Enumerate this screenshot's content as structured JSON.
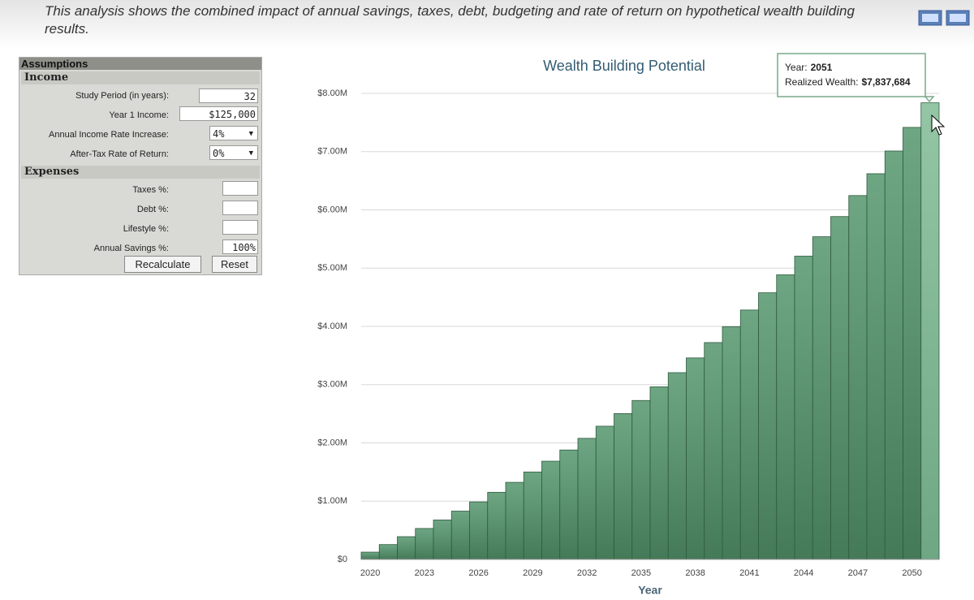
{
  "header": {
    "description": "This analysis shows the combined impact of annual savings, taxes, debt, budgeting and rate of return on hypothetical wealth building results."
  },
  "form": {
    "title": "Assumptions",
    "sections": [
      {
        "title": "Income",
        "fields": [
          {
            "label": "Study Period (in years):",
            "value": "32"
          },
          {
            "label": "Year 1 Income:",
            "value": "$125,000"
          },
          {
            "label": "Annual Income Rate Increase:",
            "value": "4%"
          },
          {
            "label": "After-Tax Rate of Return:",
            "value": "0%"
          }
        ]
      },
      {
        "title": "Expenses",
        "fields": [
          {
            "label": "Taxes %:"
          },
          {
            "label": "Debt %:"
          },
          {
            "label": "Lifestyle %:"
          },
          {
            "label": "Annual Savings %:",
            "value": "100%"
          }
        ]
      }
    ],
    "buttons": [
      "Recalculate",
      "Reset"
    ]
  },
  "chart_data": {
    "type": "bar",
    "title": "Wealth Building Potential",
    "x_label": "Year",
    "x": [
      2020,
      2021,
      2022,
      2023,
      2024,
      2025,
      2026,
      2027,
      2028,
      2029,
      2030,
      2031,
      2032,
      2033,
      2034,
      2035,
      2036,
      2037,
      2038,
      2039,
      2040,
      2041,
      2042,
      2043,
      2044,
      2045,
      2046,
      2047,
      2048,
      2049,
      2050,
      2051
    ],
    "values": [
      125000,
      255000,
      390200,
      530800,
      677000,
      829100,
      987300,
      1151800,
      1322900,
      1500800,
      1685800,
      1878200,
      2078400,
      2286500,
      2503000,
      2728100,
      2962200,
      3205700,
      3458900,
      3722300,
      3996100,
      4281000,
      4577200,
      4885300,
      5205700,
      5539000,
      5885500,
      6246000,
      6620800,
      7010600,
      7416000,
      7837684
    ],
    "color": "#5b9471",
    "xlim": [
      2019.5,
      2051.5
    ],
    "xticks": [
      2020,
      2023,
      2026,
      2029,
      2032,
      2035,
      2038,
      2041,
      2044,
      2047,
      2050
    ],
    "ylim": [
      0,
      8000000
    ],
    "yticks": [
      {
        "value": 0,
        "label": "$0"
      },
      {
        "value": 1000000,
        "label": "$1.00M"
      },
      {
        "value": 2000000,
        "label": "$2.00M"
      },
      {
        "value": 3000000,
        "label": "$3.00M"
      },
      {
        "value": 4000000,
        "label": "$4.00M"
      },
      {
        "value": 5000000,
        "label": "$5.00M"
      },
      {
        "value": 6000000,
        "label": "$6.00M"
      },
      {
        "value": 7000000,
        "label": "$7.00M"
      },
      {
        "value": 8000000,
        "label": "$8.00M"
      }
    ],
    "grid": true,
    "tooltip": {
      "year_text": "Year:",
      "year": "2051",
      "value_text": "Realized Wealth:",
      "value": "$7,837,684"
    }
  }
}
